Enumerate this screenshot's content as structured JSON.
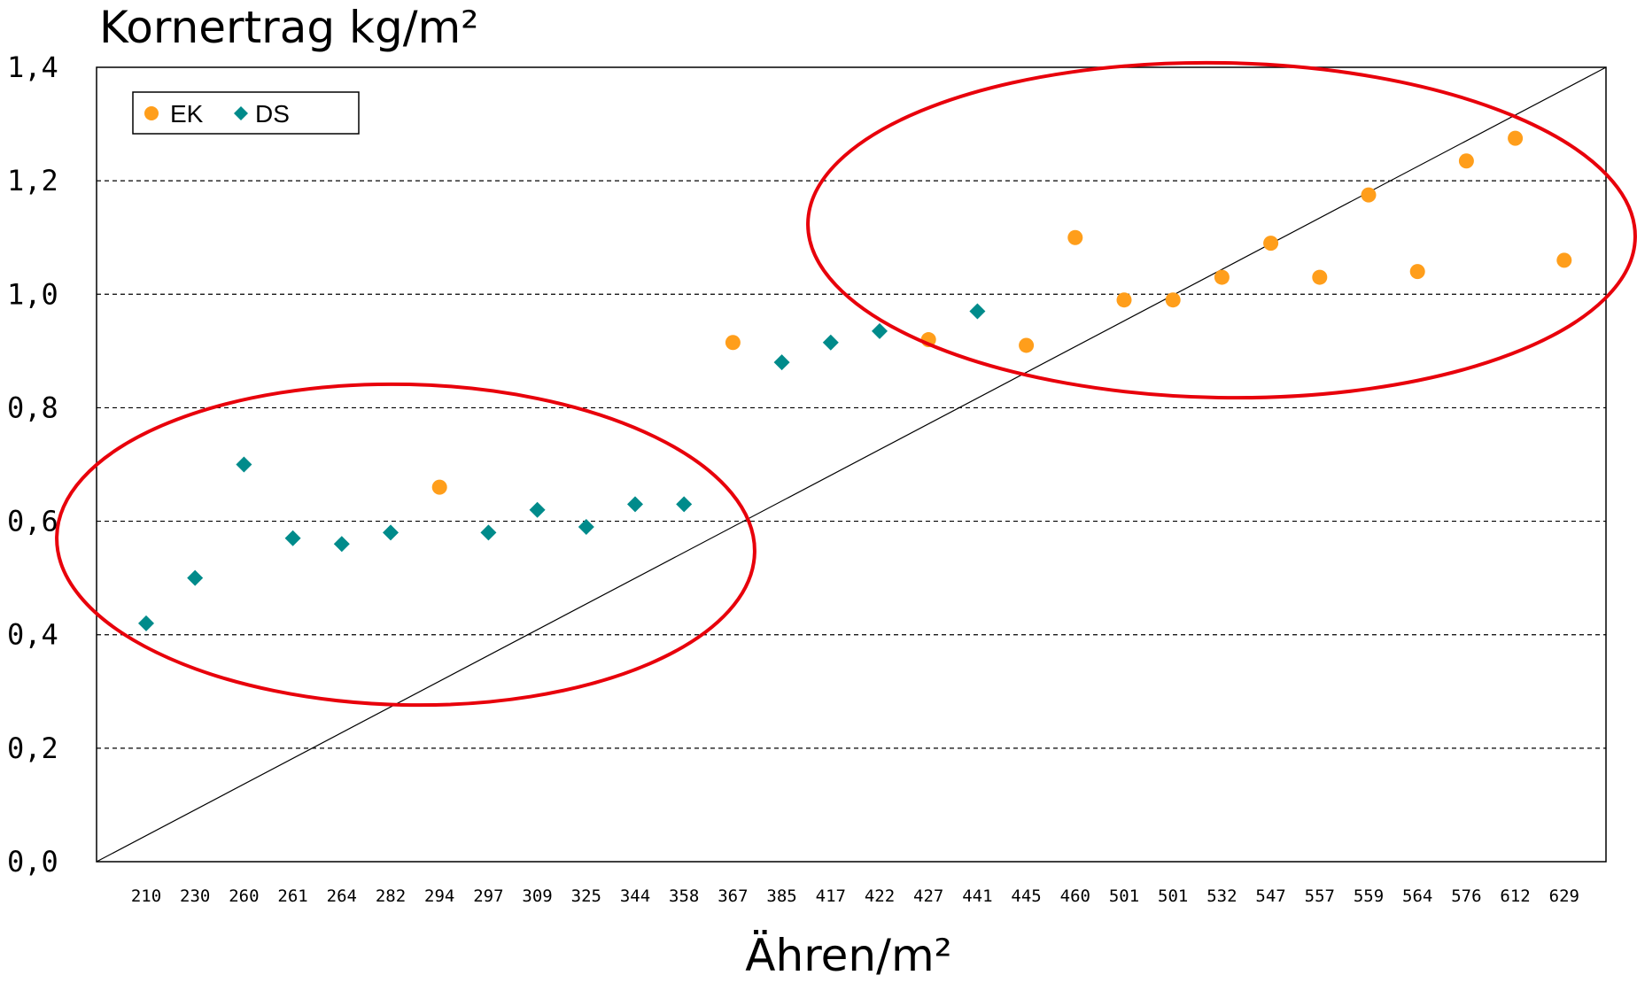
{
  "chart_data": {
    "type": "scatter",
    "ylabel": "Kornertrag kg/m²",
    "xlabel": "Ähren/m²",
    "ylim": [
      0,
      1.4
    ],
    "yticks": [
      "0,0",
      "0,2",
      "0,4",
      "0,6",
      "0,8",
      "1,0",
      "1,2",
      "1,4"
    ],
    "categories": [
      "210",
      "230",
      "260",
      "261",
      "264",
      "282",
      "294",
      "297",
      "309",
      "325",
      "344",
      "358",
      "367",
      "385",
      "417",
      "422",
      "427",
      "441",
      "445",
      "460",
      "501",
      "501",
      "532",
      "547",
      "557",
      "559",
      "564",
      "576",
      "612",
      "629"
    ],
    "grid": "horizontal-dashed",
    "legend_position": "top-left",
    "series": [
      {
        "name": "EK",
        "marker": "circle",
        "color": "#FF9E1B",
        "points": [
          {
            "category_index": 6,
            "y": 0.66
          },
          {
            "category_index": 12,
            "y": 0.915
          },
          {
            "category_index": 16,
            "y": 0.92
          },
          {
            "category_index": 18,
            "y": 0.91
          },
          {
            "category_index": 19,
            "y": 1.1
          },
          {
            "category_index": 20,
            "y": 0.99
          },
          {
            "category_index": 21,
            "y": 0.99
          },
          {
            "category_index": 22,
            "y": 1.03
          },
          {
            "category_index": 23,
            "y": 1.09
          },
          {
            "category_index": 24,
            "y": 1.03
          },
          {
            "category_index": 25,
            "y": 1.175
          },
          {
            "category_index": 26,
            "y": 1.04
          },
          {
            "category_index": 27,
            "y": 1.235
          },
          {
            "category_index": 28,
            "y": 1.275
          },
          {
            "category_index": 29,
            "y": 1.06
          }
        ]
      },
      {
        "name": "DS",
        "marker": "diamond",
        "color": "#008B8B",
        "points": [
          {
            "category_index": 0,
            "y": 0.42
          },
          {
            "category_index": 1,
            "y": 0.5
          },
          {
            "category_index": 2,
            "y": 0.7
          },
          {
            "category_index": 3,
            "y": 0.57
          },
          {
            "category_index": 4,
            "y": 0.56
          },
          {
            "category_index": 5,
            "y": 0.58
          },
          {
            "category_index": 7,
            "y": 0.58
          },
          {
            "category_index": 8,
            "y": 0.62
          },
          {
            "category_index": 9,
            "y": 0.59
          },
          {
            "category_index": 10,
            "y": 0.63
          },
          {
            "category_index": 11,
            "y": 0.63
          },
          {
            "category_index": 13,
            "y": 0.88
          },
          {
            "category_index": 14,
            "y": 0.915
          },
          {
            "category_index": 15,
            "y": 0.935
          },
          {
            "category_index": 17,
            "y": 0.97
          }
        ]
      }
    ],
    "reference_line": {
      "from_y": 0.0,
      "to_y": 1.4,
      "color": "#000000"
    },
    "annotations": [
      {
        "type": "ellipse",
        "color": "#E8000B",
        "region": "lower-left cluster"
      },
      {
        "type": "ellipse",
        "color": "#E8000B",
        "region": "upper-right cluster"
      }
    ]
  }
}
